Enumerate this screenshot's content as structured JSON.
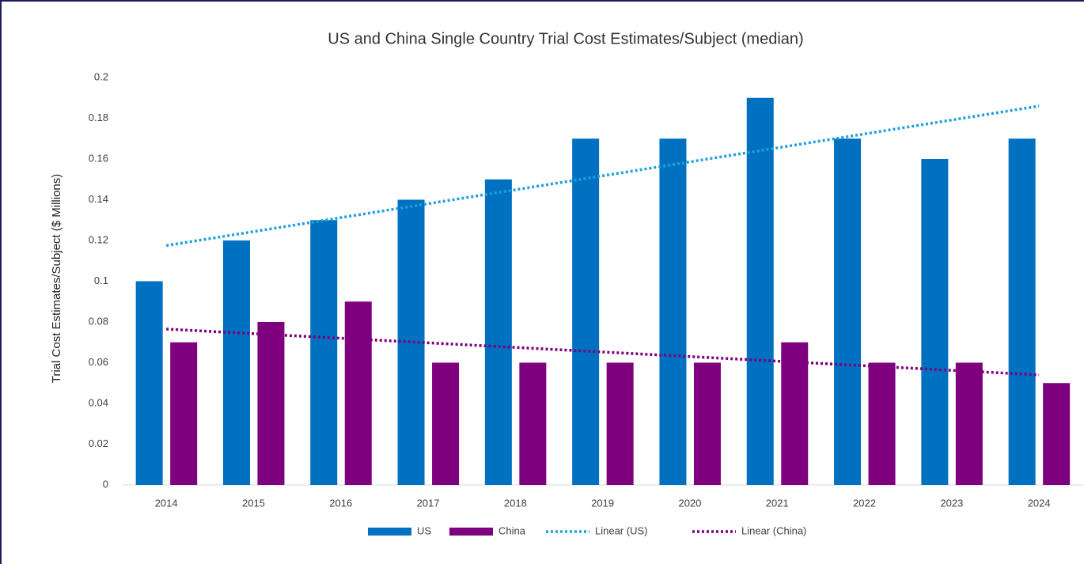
{
  "chart_data": {
    "type": "bar",
    "title": "US and China Single Country Trial Cost Estimates/Subject (median)",
    "ylabel": "Trial Cost Estimates/Subject ($ Millions)",
    "categories": [
      "2014",
      "2015",
      "2016",
      "2017",
      "2018",
      "2019",
      "2020",
      "2021",
      "2022",
      "2023",
      "2024"
    ],
    "series": [
      {
        "name": "US",
        "color": "#0070c0",
        "values": [
          0.1,
          0.12,
          0.13,
          0.14,
          0.15,
          0.17,
          0.17,
          0.19,
          0.17,
          0.16,
          0.17
        ]
      },
      {
        "name": "China",
        "color": "#7f007f",
        "values": [
          0.07,
          0.08,
          0.09,
          0.06,
          0.06,
          0.06,
          0.06,
          0.07,
          0.06,
          0.06,
          0.05
        ]
      }
    ],
    "trendlines": [
      {
        "name": "Linear (US)",
        "color": "#1ea0dc",
        "values": [
          0.1175,
          0.186
        ]
      },
      {
        "name": "Linear (China)",
        "color": "#7f007f",
        "values": [
          0.0765,
          0.054
        ]
      }
    ],
    "ylim": [
      0,
      0.2
    ],
    "yticks": [
      0,
      0.02,
      0.04,
      0.06,
      0.08,
      0.1,
      0.12,
      0.14,
      0.16,
      0.18,
      0.2
    ],
    "grid": false,
    "legend": "bottom"
  }
}
